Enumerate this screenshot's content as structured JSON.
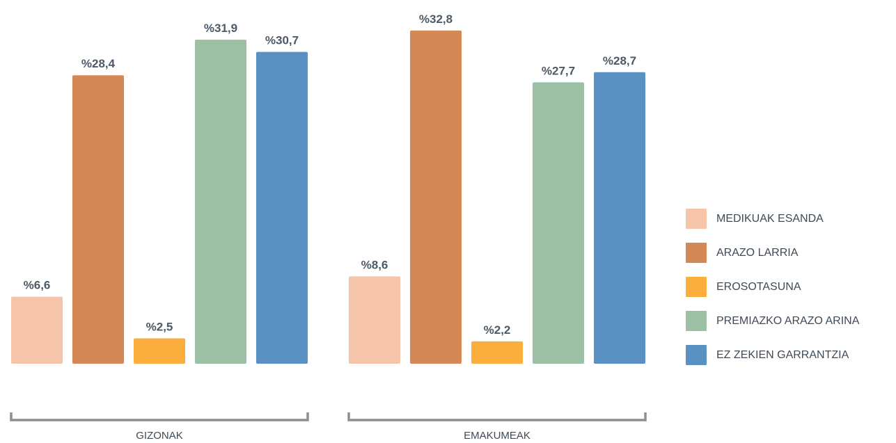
{
  "chart_data": {
    "type": "bar",
    "categories": [
      "GIZONAK",
      "EMAKUMEAK"
    ],
    "series": [
      {
        "name": "MEDIKUAK ESANDA",
        "values": [
          6.6,
          8.6
        ],
        "labels": [
          "%6,6",
          "%8,6"
        ],
        "color": "#f6c5a9"
      },
      {
        "name": "ARAZO LARRIA",
        "values": [
          28.4,
          32.8
        ],
        "labels": [
          "%28,4",
          "%32,8"
        ],
        "color": "#d38855"
      },
      {
        "name": "EROSOTASUNA",
        "values": [
          2.5,
          2.2
        ],
        "labels": [
          "%2,5",
          "%2,2"
        ],
        "color": "#fbae3e"
      },
      {
        "name": "PREMIAZKO ARAZO ARINA",
        "values": [
          31.9,
          27.7
        ],
        "labels": [
          "%31,9",
          "%27,7"
        ],
        "color": "#9bc0a4"
      },
      {
        "name": "EZ ZEKIEN GARRANTZIA",
        "values": [
          30.7,
          28.7
        ],
        "labels": [
          "%30,7",
          "%28,7"
        ],
        "color": "#5b90c2"
      }
    ],
    "ylim": [
      0,
      33
    ],
    "grid": false,
    "legend_position": "right"
  }
}
